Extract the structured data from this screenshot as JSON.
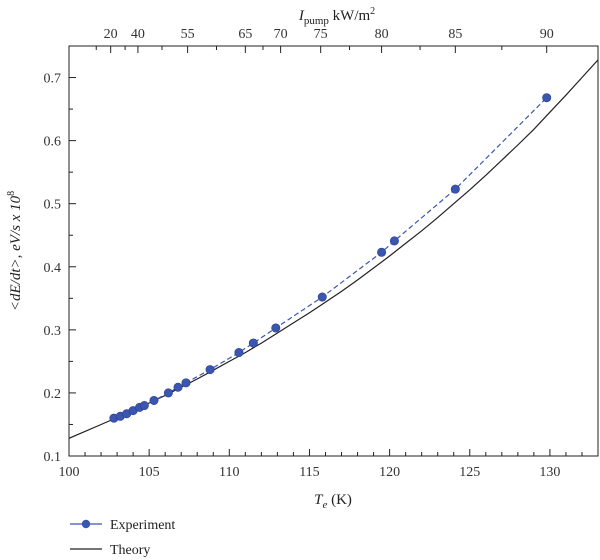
{
  "chart_data": {
    "type": "line",
    "x_axis": {
      "label_var": "T",
      "label_sub": "e",
      "label_unit": " (K)",
      "lim": [
        100,
        133
      ],
      "ticks": [
        100,
        105,
        110,
        115,
        120,
        125,
        130
      ],
      "tick_labels": [
        "100",
        "105",
        "110",
        "115",
        "120",
        "125",
        "130"
      ]
    },
    "top_axis": {
      "label_var": "I",
      "label_sub": "pump",
      "label_unit": " kW/m",
      "label_sup": "2",
      "ticks": [
        102.6,
        104.3,
        107.4,
        111.0,
        113.2,
        115.7,
        119.5,
        124.1,
        129.8
      ],
      "tick_labels": [
        "20",
        "40",
        "55",
        "65",
        "70",
        "75",
        "80",
        "85",
        "90"
      ]
    },
    "y_axis": {
      "label": "<dE/dt>, eV/s x 10",
      "label_sup": "8",
      "lim": [
        0.1,
        0.75
      ],
      "ticks": [
        0.1,
        0.2,
        0.3,
        0.4,
        0.5,
        0.6,
        0.7
      ],
      "tick_labels": [
        "0.1",
        "0.2",
        "0.3",
        "0.4",
        "0.5",
        "0.6",
        "0.7"
      ]
    },
    "series": [
      {
        "name": "Experiment",
        "color": "#3a56b0",
        "style": "dashed-markers",
        "x": [
          102.8,
          103.2,
          103.6,
          104.0,
          104.4,
          104.7,
          105.3,
          106.2,
          106.8,
          107.3,
          108.8,
          110.6,
          111.5,
          112.9,
          115.8,
          119.5,
          120.3,
          124.1,
          129.8
        ],
        "y": [
          0.16,
          0.163,
          0.167,
          0.172,
          0.177,
          0.18,
          0.188,
          0.2,
          0.209,
          0.216,
          0.237,
          0.264,
          0.279,
          0.303,
          0.352,
          0.423,
          0.441,
          0.523,
          0.668
        ]
      },
      {
        "name": "Theory",
        "color": "#222222",
        "style": "solid",
        "x": [
          100,
          101,
          102,
          103,
          104,
          105,
          106,
          107,
          108,
          109,
          110,
          111,
          112,
          113,
          114,
          115,
          116,
          117,
          118,
          119,
          120,
          121,
          122,
          123,
          124,
          125,
          126,
          127,
          128,
          129,
          130,
          131,
          132,
          133
        ],
        "y": [
          0.128,
          0.139,
          0.15,
          0.161,
          0.172,
          0.184,
          0.196,
          0.209,
          0.222,
          0.236,
          0.25,
          0.264,
          0.279,
          0.295,
          0.311,
          0.327,
          0.344,
          0.361,
          0.379,
          0.398,
          0.417,
          0.437,
          0.457,
          0.478,
          0.5,
          0.522,
          0.545,
          0.569,
          0.593,
          0.618,
          0.645,
          0.672,
          0.7,
          0.728
        ]
      }
    ],
    "legend": {
      "position": "bottom-left",
      "entries": [
        "Experiment",
        "Theory"
      ]
    },
    "grid": false
  }
}
